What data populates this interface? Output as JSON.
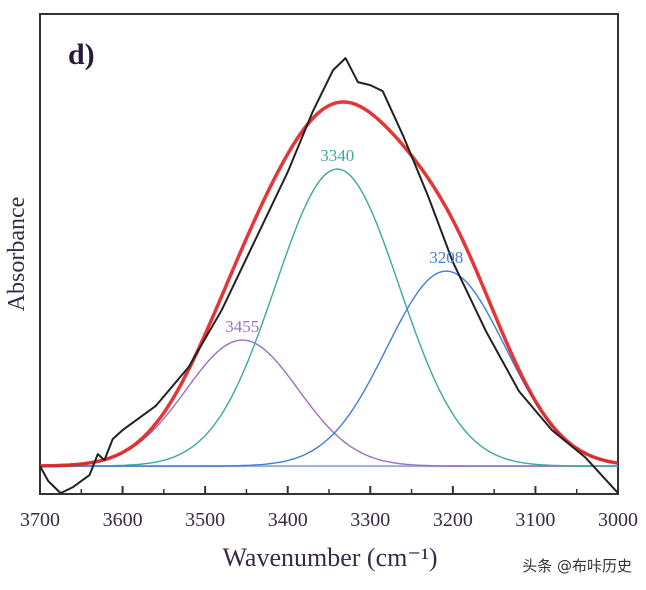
{
  "chart_data": {
    "type": "line",
    "panel_label": "d)",
    "xlabel": "Wavenumber (cm⁻¹)",
    "ylabel": "Absorbance",
    "xlim": [
      3700,
      3000
    ],
    "x_reversed": true,
    "ylim": [
      -0.093,
      1.507
    ],
    "x_ticks": [
      3700,
      3600,
      3500,
      3400,
      3300,
      3200,
      3100,
      3000
    ],
    "y_tick_labels_shown": false,
    "grid": false,
    "experimental": {
      "color": "#222222",
      "points": [
        [
          3700,
          0
        ],
        [
          3690,
          -0.05
        ],
        [
          3675,
          -0.09
        ],
        [
          3660,
          -0.07
        ],
        [
          3640,
          -0.03
        ],
        [
          3630,
          0.04
        ],
        [
          3622,
          0.02
        ],
        [
          3612,
          0.09
        ],
        [
          3600,
          0.12
        ],
        [
          3560,
          0.2
        ],
        [
          3520,
          0.33
        ],
        [
          3480,
          0.52
        ],
        [
          3440,
          0.75
        ],
        [
          3400,
          0.98
        ],
        [
          3370,
          1.18
        ],
        [
          3345,
          1.32
        ],
        [
          3330,
          1.36
        ],
        [
          3315,
          1.28
        ],
        [
          3300,
          1.27
        ],
        [
          3285,
          1.25
        ],
        [
          3260,
          1.1
        ],
        [
          3230,
          0.9
        ],
        [
          3200,
          0.68
        ],
        [
          3160,
          0.45
        ],
        [
          3120,
          0.25
        ],
        [
          3080,
          0.12
        ],
        [
          3040,
          0.03
        ],
        [
          3000,
          -0.09
        ]
      ]
    },
    "fit_color": "#e02020",
    "peaks": [
      {
        "label": "3455",
        "center": 3455,
        "amplitude": 0.42,
        "sigma": 68,
        "color": "#9a6fc0"
      },
      {
        "label": "3340",
        "center": 3340,
        "amplitude": 0.99,
        "sigma": 75,
        "color": "#3aaa9a"
      },
      {
        "label": "3208",
        "center": 3208,
        "amplitude": 0.65,
        "sigma": 72,
        "color": "#3f7fd8"
      }
    ]
  },
  "watermark": "头条 @布咔历史"
}
